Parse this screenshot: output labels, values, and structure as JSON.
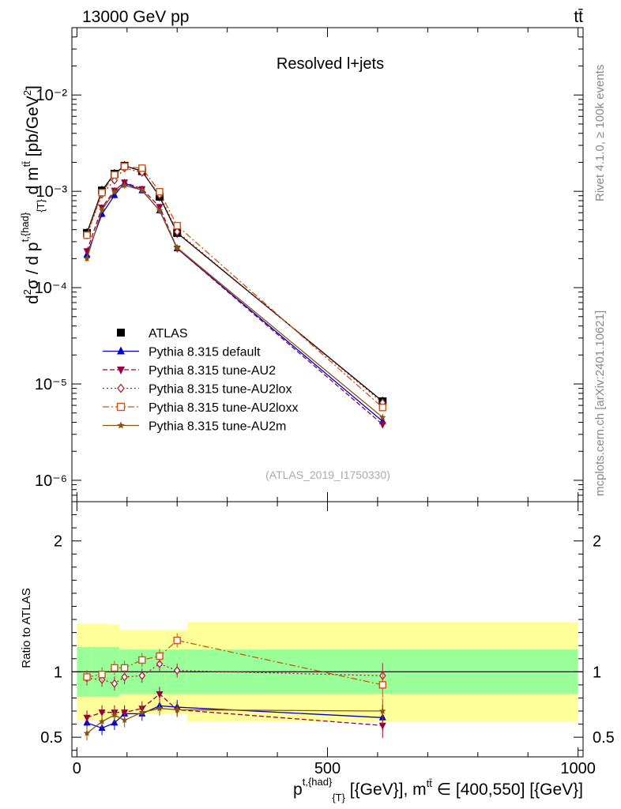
{
  "header": {
    "left": "13000 GeV pp",
    "right": "tt̄"
  },
  "side": {
    "rivet": "Rivet 4.1.0, ≥ 100k events",
    "mcplots": "mcplots.cern.ch [arXiv:2401.10621]"
  },
  "chart_data": [
    {
      "type": "scatter",
      "title": "Resolved l+jets",
      "watermark": "(ATLAS_2019_I1750330)",
      "xlim": [
        -10,
        1010
      ],
      "ylim": [
        6e-07,
        0.05
      ],
      "yscale": "log",
      "ylabel": "d²σ / d p^{t,{had}}_{T} d m^{tt̄} [pb/GeV²]",
      "y_ticks": [
        {
          "value": 1e-06,
          "label": "10⁻⁶"
        },
        {
          "value": 1e-05,
          "label": "10⁻⁵"
        },
        {
          "value": 0.0001,
          "label": "10⁻⁴"
        },
        {
          "value": 0.001,
          "label": "10⁻³"
        },
        {
          "value": 0.01,
          "label": "10⁻²"
        }
      ],
      "x": [
        20,
        50,
        75,
        95,
        130,
        165,
        200,
        610
      ],
      "series": [
        {
          "name": "ATLAS",
          "color": "#000000",
          "marker": "square",
          "dash": "none",
          "values": [
            0.00037,
            0.00102,
            0.00152,
            0.00184,
            0.00162,
            0.00088,
            0.00037,
            6.6e-06
          ]
        },
        {
          "name": "Pythia 8.315 default",
          "color": "#0000cc",
          "marker": "triangle-up",
          "dash": "none",
          "values": [
            0.00022,
            0.00058,
            0.00091,
            0.00122,
            0.00102,
            0.00063,
            0.000255,
            4.1e-06
          ]
        },
        {
          "name": "Pythia 8.315 tune-AU2",
          "color": "#990044",
          "marker": "triangle-down",
          "dash": "6,3",
          "values": [
            0.00024,
            0.00068,
            0.00102,
            0.00124,
            0.00106,
            0.00069,
            0.000255,
            3.8e-06
          ]
        },
        {
          "name": "Pythia 8.315 tune-AU2lox",
          "color": "#aa2233",
          "marker": "diamond",
          "dash": "2,3",
          "values": [
            0.00035,
            0.00093,
            0.0013,
            0.00174,
            0.00157,
            0.00092,
            0.00038,
            6.4e-06
          ]
        },
        {
          "name": "Pythia 8.315 tune-AU2loxx",
          "color": "#cc5511",
          "marker": "square-open",
          "dash": "8,3,2,3",
          "values": [
            0.00035,
            0.00097,
            0.00148,
            0.00181,
            0.00174,
            0.00099,
            0.00044,
            5.7e-06
          ]
        },
        {
          "name": "Pythia 8.315 tune-AU2m",
          "color": "#885511",
          "marker": "star",
          "dash": "none",
          "values": [
            0.0002,
            0.00064,
            0.00099,
            0.00115,
            0.00103,
            0.00063,
            0.00026,
            4.5e-06
          ]
        }
      ]
    },
    {
      "type": "line",
      "ylabel": "Ratio to ATLAS",
      "xlabel": "p^{t,{had}}_{T} [{GeV}], m^{tt̄} ∈ [400,550] [{GeV}]",
      "xlim": [
        -10,
        1010
      ],
      "ylim": [
        0.35,
        2.3
      ],
      "x_ticks": [
        0,
        500,
        1000
      ],
      "y_ticks": [
        0.5,
        1,
        2
      ],
      "x": [
        20,
        50,
        75,
        95,
        130,
        165,
        200,
        610
      ],
      "bands": {
        "edges": [
          0,
          30,
          65,
          85,
          110,
          150,
          175,
          220,
          1000
        ],
        "inner": [
          0.19,
          0.19,
          0.19,
          0.17,
          0.17,
          0.17,
          0.17,
          0.17
        ],
        "outer": [
          0.37,
          0.37,
          0.36,
          0.32,
          0.32,
          0.32,
          0.32,
          0.38
        ],
        "inner_color": "#99ff99",
        "outer_color": "#ffff99"
      },
      "series": [
        {
          "name": "Pythia 8.315 default",
          "values": [
            0.61,
            0.57,
            0.61,
            0.68,
            0.68,
            0.74,
            0.73,
            0.65
          ]
        },
        {
          "name": "Pythia 8.315 tune-AU2",
          "values": [
            0.65,
            0.69,
            0.69,
            0.69,
            0.72,
            0.83,
            0.71,
            0.59
          ]
        },
        {
          "name": "Pythia 8.315 tune-AU2lox",
          "values": [
            0.95,
            0.94,
            0.91,
            0.96,
            0.97,
            1.06,
            1.01,
            0.97
          ]
        },
        {
          "name": "Pythia 8.315 tune-AU2loxx",
          "values": [
            0.96,
            0.98,
            1.03,
            1.03,
            1.09,
            1.12,
            1.24,
            0.9
          ]
        },
        {
          "name": "Pythia 8.315 tune-AU2m",
          "values": [
            0.53,
            0.62,
            0.67,
            0.63,
            0.69,
            0.72,
            0.71,
            0.7
          ]
        }
      ]
    }
  ]
}
